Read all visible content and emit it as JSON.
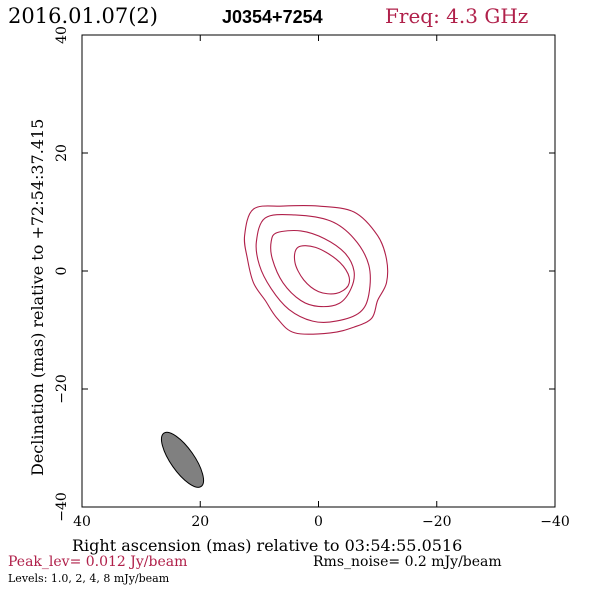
{
  "header": {
    "date": "2016.01.07(2)",
    "source": "J0354+7254",
    "freq": "Freq: 4.3 GHz"
  },
  "footer": {
    "peak": "Peak_lev=  0.012 Jy/beam",
    "rms": "Rms_noise=   0.2 mJy/beam",
    "levels": "Levels: 1.0,    2,    4,    8 mJy/beam"
  },
  "colors": {
    "contour": "#b0204a",
    "header_freq": "#b0204a",
    "beam_fill": "#808080",
    "frame": "#000000"
  },
  "chart_data": {
    "type": "contour",
    "title": "",
    "xlabel": "Right ascension (mas) relative to 03:54:55.0516",
    "ylabel": "Declination (mas) relative to +72:54:37.415",
    "xlim": [
      40,
      -40
    ],
    "ylim": [
      -40,
      40
    ],
    "xticks": [
      40,
      20,
      0,
      -20,
      -40
    ],
    "yticks": [
      -40,
      -20,
      0,
      20,
      40
    ],
    "xtick_labels": [
      "40",
      "20",
      "0",
      "−20",
      "−40"
    ],
    "ytick_labels": [
      "−40",
      "−20",
      "0",
      "20",
      "40"
    ],
    "levels_mJy": [
      1.0,
      2,
      4,
      8
    ],
    "contours": [
      {
        "level": 1.0,
        "points": [
          [
            11,
            10.5
          ],
          [
            6,
            11
          ],
          [
            0,
            11
          ],
          [
            -6,
            10
          ],
          [
            -10,
            6
          ],
          [
            -11.5,
            2
          ],
          [
            -11.5,
            -2
          ],
          [
            -10,
            -5
          ],
          [
            -9,
            -8
          ],
          [
            -6,
            -9.5
          ],
          [
            -2,
            -10.5
          ],
          [
            4,
            -10.5
          ],
          [
            7,
            -8
          ],
          [
            9,
            -5
          ],
          [
            11,
            -2
          ],
          [
            12,
            2
          ],
          [
            12.5,
            6
          ]
        ]
      },
      {
        "level": 2,
        "points": [
          [
            9,
            9
          ],
          [
            4,
            9.5
          ],
          [
            -2,
            8.5
          ],
          [
            -6,
            5.5
          ],
          [
            -8.5,
            1
          ],
          [
            -8.5,
            -4
          ],
          [
            -7,
            -7
          ],
          [
            -3,
            -8.5
          ],
          [
            1,
            -8.5
          ],
          [
            5,
            -6.5
          ],
          [
            8,
            -3
          ],
          [
            10,
            1
          ],
          [
            10.5,
            5
          ]
        ]
      },
      {
        "level": 4,
        "points": [
          [
            7,
            6.5
          ],
          [
            3,
            6.8
          ],
          [
            -1,
            5.5
          ],
          [
            -4.5,
            3
          ],
          [
            -6,
            0
          ],
          [
            -5.5,
            -3
          ],
          [
            -3.5,
            -5.5
          ],
          [
            0,
            -6
          ],
          [
            3,
            -5
          ],
          [
            6,
            -2
          ],
          [
            7.8,
            2
          ],
          [
            8,
            5
          ]
        ]
      },
      {
        "level": 8,
        "points": [
          [
            3.5,
            4
          ],
          [
            0.5,
            4
          ],
          [
            -3,
            2
          ],
          [
            -5,
            -0.5
          ],
          [
            -5,
            -2.5
          ],
          [
            -3,
            -3.8
          ],
          [
            0,
            -3.5
          ],
          [
            2.5,
            -1.5
          ],
          [
            4,
            1.5
          ]
        ]
      }
    ],
    "beam": {
      "x": 23,
      "y": -32,
      "major_mas": 11,
      "minor_mas": 4,
      "pa_deg": 35
    }
  }
}
